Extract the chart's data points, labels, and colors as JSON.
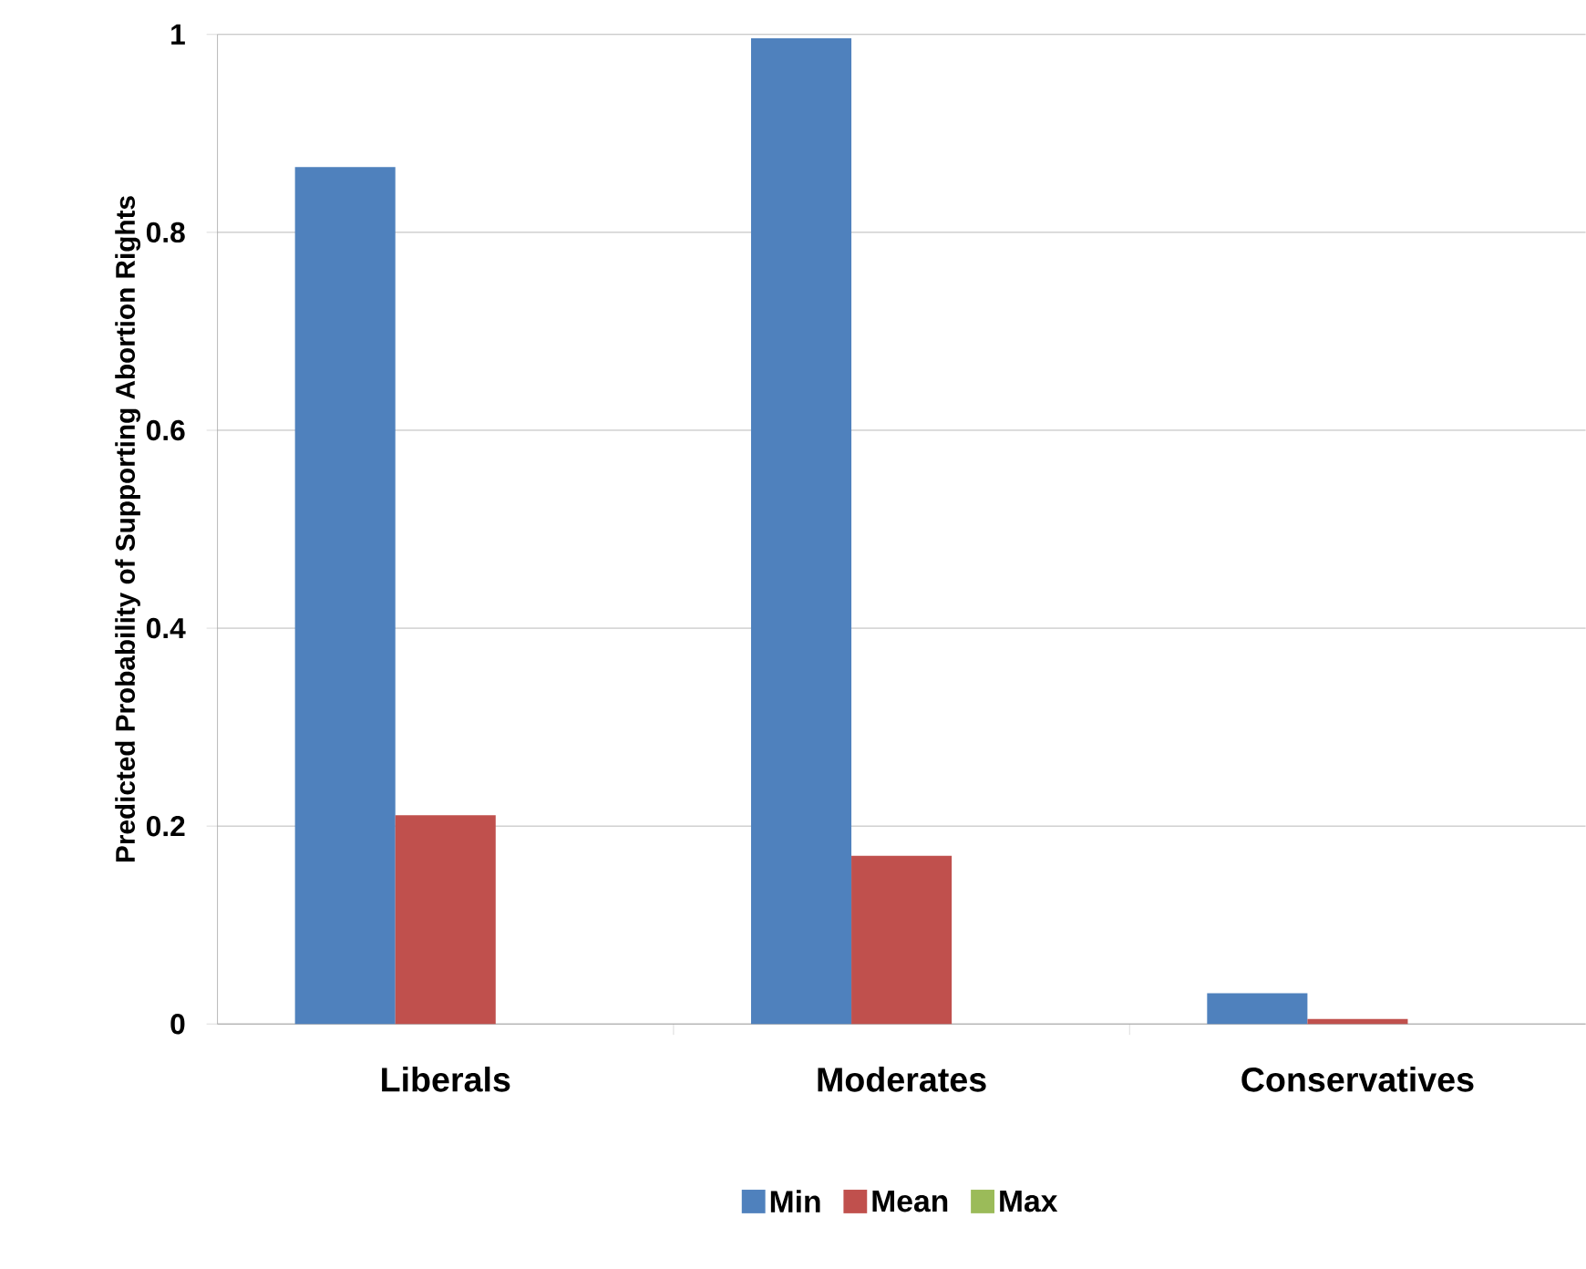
{
  "chart_data": {
    "type": "bar",
    "ylabel": "Predicted Probability of Supporting Abortion Rights",
    "categories": [
      "Liberals",
      "Moderates",
      "Conservatives"
    ],
    "series": [
      {
        "name": "Min",
        "color": "#4f81bd",
        "values": [
          0.866,
          0.996,
          0.031
        ]
      },
      {
        "name": "Mean",
        "color": "#c0504d",
        "values": [
          0.211,
          0.17,
          0.005
        ]
      },
      {
        "name": "Max",
        "color": "#9bbb59",
        "values": [
          0,
          0,
          0
        ]
      }
    ],
    "ylim": [
      0,
      1
    ],
    "yticks": [
      0,
      0.2,
      0.4,
      0.6,
      0.8,
      1
    ],
    "grid": "y",
    "legend": "bottom"
  }
}
